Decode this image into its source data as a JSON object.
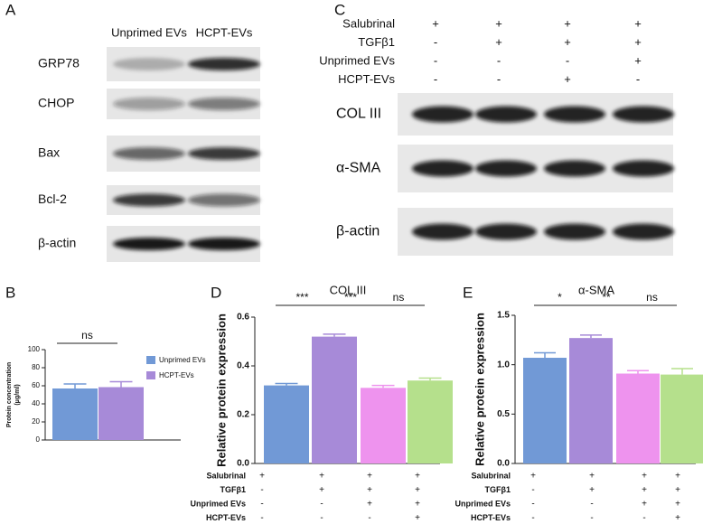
{
  "blot_A": {
    "panel": "A",
    "lanes": [
      "Unprimed EVs",
      "HCPT-EVs"
    ],
    "rows": [
      "GRP78",
      "CHOP",
      "Bax",
      "Bcl-2",
      "β-actin"
    ]
  },
  "blot_C": {
    "panel": "C",
    "conditions": [
      {
        "label": "Salubrinal",
        "signs": [
          "+",
          "+",
          "+",
          "+"
        ]
      },
      {
        "label": "TGFβ1",
        "signs": [
          "-",
          "+",
          "+",
          "+"
        ]
      },
      {
        "label": "Unprimed EVs",
        "signs": [
          "-",
          "-",
          "-",
          "+"
        ]
      },
      {
        "label": "HCPT-EVs",
        "signs": [
          "-",
          "-",
          "+",
          "-"
        ]
      }
    ],
    "rows": [
      "COL III",
      "α-SMA",
      "β-actin"
    ]
  },
  "chart_data": [
    {
      "type": "bar",
      "panel": "B",
      "ylabel": [
        "Protein concentration",
        "(μg/ml)"
      ],
      "series": [
        {
          "name": "Unprimed EVs",
          "color": "#7199d6",
          "values": [
            57
          ],
          "errors": [
            5
          ]
        },
        {
          "name": "HCPT-EVs",
          "color": "#a78ad8",
          "values": [
            58.5
          ],
          "errors": [
            6
          ]
        }
      ],
      "annotations": [
        "ns"
      ],
      "ylim": [
        0,
        100
      ],
      "yticks": [
        0,
        20,
        40,
        60,
        80,
        100
      ]
    },
    {
      "type": "bar",
      "panel": "D",
      "title": "COL III",
      "ylabel": "Relative protein expression",
      "values": [
        0.32,
        0.52,
        0.31,
        0.34
      ],
      "errors": [
        0.008,
        0.01,
        0.01,
        0.01
      ],
      "colors": [
        "#7199d6",
        "#a78ad8",
        "#ee93ee",
        "#b5e08c"
      ],
      "annotations": [
        "***",
        "***",
        "ns"
      ],
      "ylim": [
        0,
        0.6
      ],
      "yticks": [
        {
          "value": 0,
          "label": "0.0"
        },
        0.2,
        0.4,
        0.6
      ],
      "condition_table": [
        {
          "label": "Salubrinal",
          "signs": [
            "+",
            "+",
            "+",
            "+"
          ]
        },
        {
          "label": "TGFβ1",
          "signs": [
            "-",
            "+",
            "+",
            "+"
          ]
        },
        {
          "label": "Unprimed EVs",
          "signs": [
            "-",
            "-",
            "+",
            "+"
          ]
        },
        {
          "label": "HCPT-EVs",
          "signs": [
            "-",
            "-",
            "-",
            "+"
          ]
        }
      ]
    },
    {
      "type": "bar",
      "panel": "E",
      "title": "α-SMA",
      "ylabel": "Relative protein expression",
      "values": [
        1.07,
        1.27,
        0.91,
        0.9
      ],
      "errors": [
        0.05,
        0.03,
        0.03,
        0.06
      ],
      "colors": [
        "#7199d6",
        "#a78ad8",
        "#ee93ee",
        "#b5e08c"
      ],
      "annotations": [
        "*",
        "**",
        "ns"
      ],
      "ylim": [
        0,
        1.5
      ],
      "yticks": [
        {
          "value": 0,
          "label": "0.0"
        },
        0.5,
        {
          "value": 1,
          "label": "1.0"
        },
        1.5
      ],
      "condition_table": [
        {
          "label": "Salubrinal",
          "signs": [
            "+",
            "+",
            "+",
            "+"
          ]
        },
        {
          "label": "TGFβ1",
          "signs": [
            "-",
            "+",
            "+",
            "+"
          ]
        },
        {
          "label": "Unprimed EVs",
          "signs": [
            "-",
            "-",
            "+",
            "+"
          ]
        },
        {
          "label": "HCPT-EVs",
          "signs": [
            "-",
            "-",
            "-",
            "+"
          ]
        }
      ]
    }
  ]
}
